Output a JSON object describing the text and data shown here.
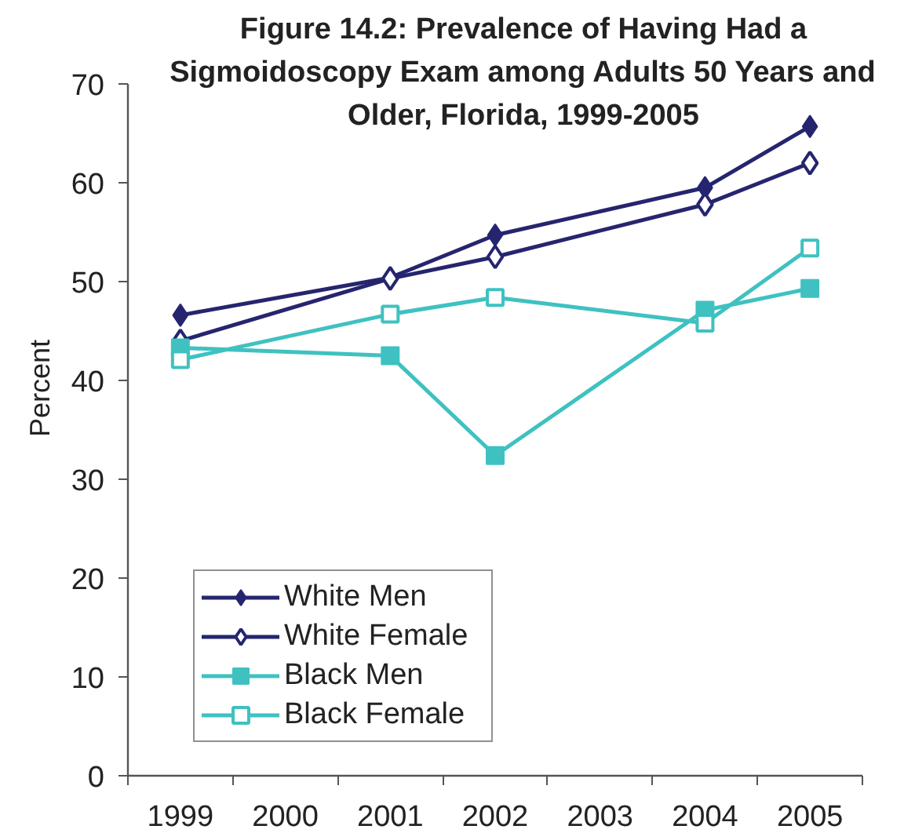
{
  "chart_data": {
    "type": "line",
    "title": "Figure 14.2: Prevalence of Having Had a\nSigmoidoscopy Exam among Adults 50 Years and\nOlder, Florida, 1999-2005",
    "ylabel": "Percent",
    "categories": [
      "1999",
      "2000",
      "2001",
      "2002",
      "2003",
      "2004",
      "2005"
    ],
    "ylim": [
      0,
      70
    ],
    "yticks": [
      0,
      10,
      20,
      30,
      40,
      50,
      60,
      70
    ],
    "legend": "bottom left",
    "series": [
      {
        "name": "White Men",
        "color": "#25256f",
        "marker": "diamond",
        "values": [
          46.6,
          null,
          50.4,
          54.7,
          null,
          59.5,
          65.7
        ]
      },
      {
        "name": "White Female",
        "color": "#25256f",
        "marker": "diamond-open",
        "values": [
          44.0,
          null,
          50.3,
          52.5,
          null,
          57.8,
          62.0
        ]
      },
      {
        "name": "Black Men",
        "color": "#3fc1c1",
        "marker": "square",
        "values": [
          43.3,
          null,
          42.5,
          32.4,
          null,
          47.1,
          49.3
        ]
      },
      {
        "name": "Black Female",
        "color": "#3fc1c1",
        "marker": "square-open",
        "values": [
          42.1,
          null,
          46.7,
          48.4,
          null,
          45.8,
          53.4
        ]
      }
    ]
  }
}
